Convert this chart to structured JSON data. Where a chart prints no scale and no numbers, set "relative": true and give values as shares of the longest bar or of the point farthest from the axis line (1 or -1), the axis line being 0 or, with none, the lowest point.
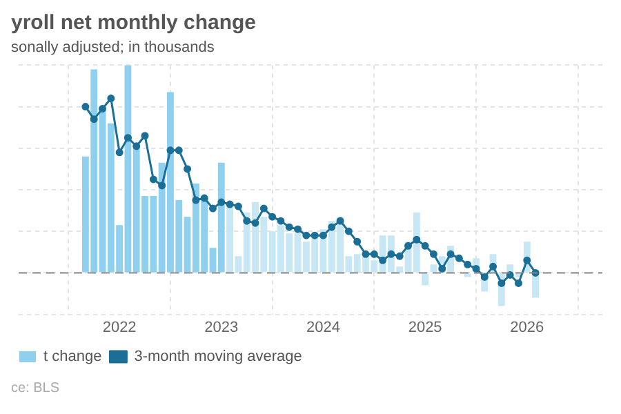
{
  "chart_data": {
    "type": "bar",
    "title": "yroll net monthly change",
    "subtitle": "sonally adjusted; in thousands",
    "relative": true,
    "x": [
      "2021-09",
      "2021-10",
      "2021-11",
      "2021-12",
      "2022-01",
      "2022-02",
      "2022-03",
      "2022-04",
      "2022-05",
      "2022-06",
      "2022-07",
      "2022-08",
      "2022-09",
      "2022-10",
      "2022-11",
      "2022-12",
      "2023-01",
      "2023-02",
      "2023-03",
      "2023-04",
      "2023-05",
      "2023-06",
      "2023-07",
      "2023-08",
      "2023-09",
      "2023-10",
      "2023-11",
      "2023-12",
      "2024-01",
      "2024-02",
      "2024-03",
      "2024-04",
      "2024-05",
      "2024-06",
      "2024-07",
      "2024-08",
      "2024-09",
      "2024-10",
      "2024-11",
      "2024-12",
      "2025-01",
      "2025-02",
      "2025-03",
      "2025-04",
      "2025-05",
      "2025-06",
      "2025-07",
      "2025-08",
      "2025-09",
      "2025-10",
      "2025-11",
      "2025-12",
      "2026-01",
      "2026-02"
    ],
    "xlim": [
      "2021-08",
      "2026-03"
    ],
    "xticks": [
      "2022",
      "2023",
      "2024",
      "2025",
      "2026"
    ],
    "series": [
      {
        "name": "t change",
        "color": "#8fd0ee",
        "colors": [
          "#8fd0ee",
          "#8fd0ee",
          "#8fd0ee",
          "#8fd0ee",
          "#8fd0ee",
          "#8fd0ee",
          "#8fd0ee",
          "#8fd0ee",
          "#8fd0ee",
          "#8fd0ee",
          "#8fd0ee",
          "#8fd0ee",
          "#8fd0ee",
          "#8fd0ee",
          "#8fd0ee",
          "#8fd0ee",
          "#8fd0ee",
          "#c8e7f5",
          "#c8e7f5",
          "#c8e7f5",
          "#c8e7f5",
          "#c8e7f5",
          "#c8e7f5",
          "#c8e7f5",
          "#c8e7f5",
          "#c8e7f5",
          "#c8e7f5",
          "#c8e7f5",
          "#c8e7f5",
          "#c8e7f5",
          "#c8e7f5",
          "#c8e7f5",
          "#c8e7f5",
          "#c8e7f5",
          "#c8e7f5",
          "#c8e7f5",
          "#c8e7f5",
          "#c8e7f5",
          "#c8e7f5",
          "#c8e7f5",
          "#c8e7f5",
          "#c8e7f5",
          "#c8e7f5",
          "#c8e7f5",
          "#c8e7f5",
          "#c8e7f5",
          "#c8e7f5",
          "#c8e7f5",
          "#c8e7f5",
          "#c8e7f5",
          "#c8e7f5",
          "#c8e7f5",
          "#c8e7f5",
          "#c8e7f5"
        ],
        "values": [
          0.56,
          0.98,
          0.78,
          0.72,
          0.23,
          1.0,
          0.6,
          0.37,
          0.37,
          0.53,
          0.87,
          0.35,
          0.27,
          0.43,
          0.35,
          0.12,
          0.53,
          0.32,
          0.08,
          0.29,
          0.34,
          0.27,
          0.2,
          0.23,
          0.19,
          0.19,
          0.15,
          0.17,
          0.21,
          0.25,
          0.27,
          0.08,
          0.09,
          0.08,
          0.06,
          0.18,
          0.18,
          0.03,
          0.15,
          0.29,
          -0.06,
          0.04,
          0.08,
          0.13,
          null,
          -0.02,
          0.07,
          -0.09,
          0.09,
          -0.16,
          0.04,
          -0.02,
          0.15,
          -0.12
        ]
      },
      {
        "name": "3-month moving average",
        "type": "line",
        "color": "#1b6f96",
        "marker": "circle",
        "values": [
          0.8,
          0.74,
          0.79,
          0.84,
          0.58,
          0.65,
          0.61,
          0.66,
          0.45,
          0.42,
          0.59,
          0.59,
          0.5,
          0.35,
          0.36,
          0.31,
          0.34,
          0.33,
          0.32,
          0.25,
          0.24,
          0.31,
          0.27,
          0.25,
          0.22,
          0.21,
          0.18,
          0.18,
          0.18,
          0.22,
          0.25,
          0.2,
          0.15,
          0.09,
          0.09,
          0.06,
          0.09,
          0.08,
          0.13,
          0.16,
          0.13,
          0.09,
          0.02,
          0.09,
          0.07,
          0.04,
          0.02,
          -0.02,
          0.03,
          -0.05,
          -0.01,
          -0.05,
          0.06,
          0.0
        ]
      }
    ],
    "ref_lines": [
      {
        "axis": "y",
        "value": 0,
        "color": "#888888",
        "line_style": "dashed"
      }
    ],
    "grid": true,
    "legend": "bottom left",
    "line_style": "solid",
    "annotations": [
      "ce: BLS"
    ]
  }
}
